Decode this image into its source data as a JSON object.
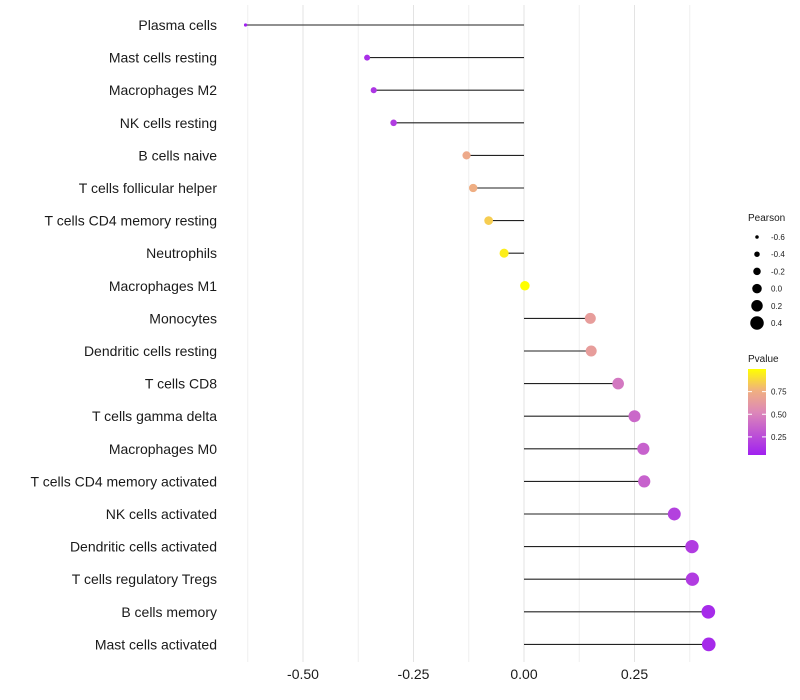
{
  "chart_data": {
    "type": "lollipop",
    "categories": [
      "Plasma cells",
      "Mast cells resting",
      "Macrophages M2",
      "NK cells resting",
      "B cells naive",
      "T cells follicular helper",
      "T cells CD4 memory resting",
      "Neutrophils",
      "Macrophages M1",
      "Monocytes",
      "Dendritic cells resting",
      "T cells CD8",
      "T cells gamma delta",
      "Macrophages M0",
      "T cells CD4 memory activated",
      "NK cells activated",
      "Dendritic cells activated",
      "T cells regulatory  Tregs",
      "B cells memory",
      "Mast cells activated"
    ],
    "values": [
      -0.63,
      -0.355,
      -0.34,
      -0.295,
      -0.13,
      -0.115,
      -0.08,
      -0.045,
      0.002,
      0.15,
      0.152,
      0.213,
      0.25,
      0.27,
      0.272,
      0.34,
      0.38,
      0.381,
      0.417,
      0.418
    ],
    "pvalues": [
      0.05,
      0.12,
      0.15,
      0.18,
      0.72,
      0.75,
      0.85,
      0.95,
      1.0,
      0.65,
      0.65,
      0.45,
      0.38,
      0.35,
      0.35,
      0.2,
      0.18,
      0.18,
      0.1,
      0.1
    ],
    "xlim": [
      -0.63,
      0.44
    ],
    "xticks": [
      -0.5,
      -0.25,
      0.0,
      0.25
    ],
    "xtick_labels": [
      "-0.50",
      "-0.25",
      "0.00",
      "0.25"
    ],
    "size_legend": {
      "title": "Pearson",
      "values": [
        -0.6,
        -0.4,
        -0.2,
        0.0,
        0.2,
        0.4
      ],
      "labels": [
        "-0.6",
        "-0.4",
        "-0.2",
        "0.0",
        "0.2",
        "0.4"
      ]
    },
    "color_legend": {
      "title": "Pvalue",
      "range": [
        0.05,
        1.0
      ],
      "ticks": [
        0.25,
        0.5,
        0.75
      ],
      "tick_labels": [
        "0.25",
        "0.50",
        "0.75"
      ],
      "low_color": "#a020f0",
      "high_color": "#ffff00"
    },
    "title": "",
    "xlabel": "",
    "ylabel": "",
    "grid": true
  }
}
